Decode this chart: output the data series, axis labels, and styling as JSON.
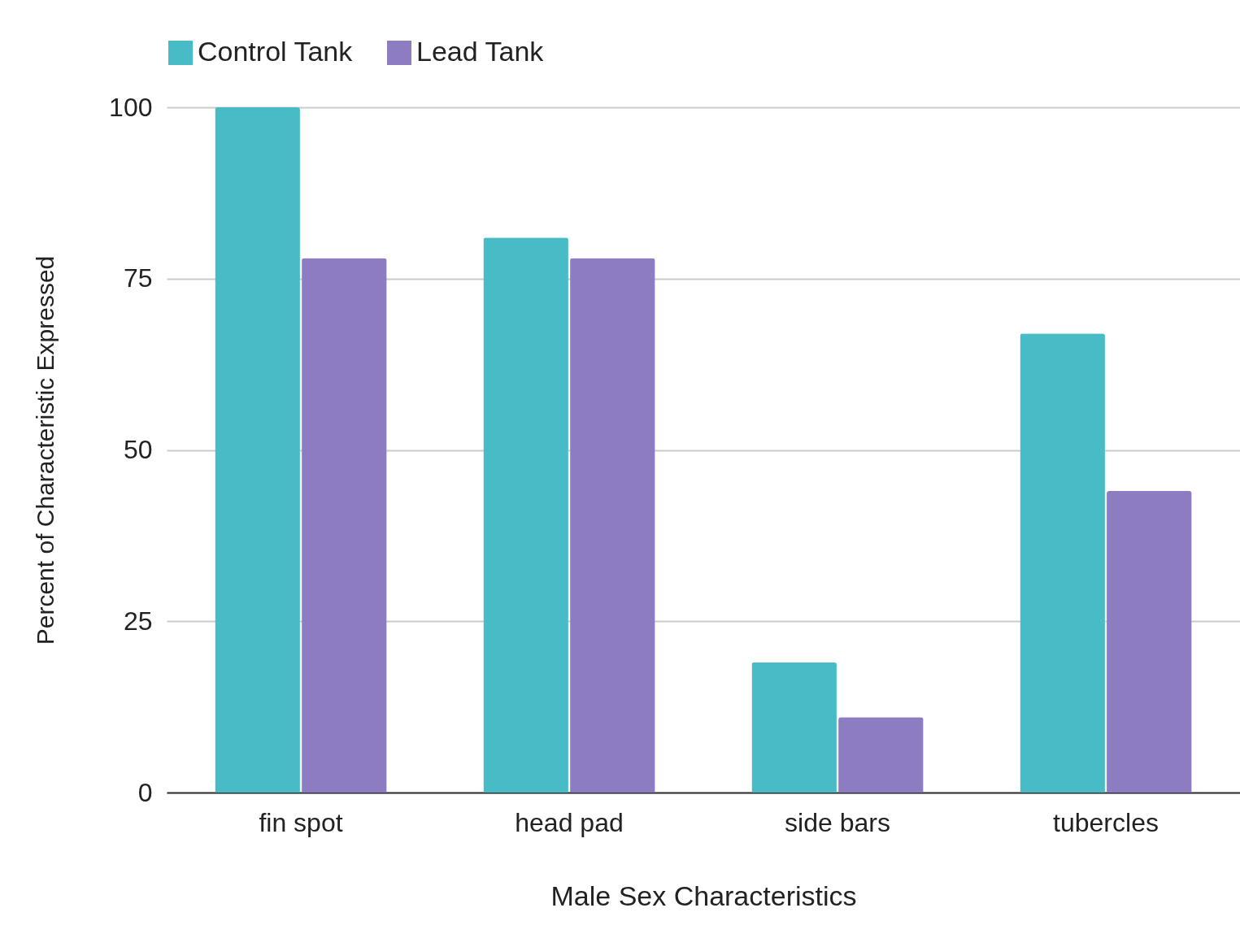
{
  "chart_data": {
    "type": "bar",
    "xlabel": "Male Sex Characteristics",
    "ylabel": "Percent of Characteristic Expressed",
    "categories": [
      "fin spot",
      "head pad",
      "side bars",
      "tubercles"
    ],
    "series": [
      {
        "name": "Control Tank",
        "color": "#47bcc6",
        "values": [
          100,
          81,
          19,
          67
        ]
      },
      {
        "name": "Lead Tank",
        "color": "#8e7cc3",
        "values": [
          78,
          78,
          11,
          44
        ]
      }
    ],
    "ylim": [
      0,
      100
    ],
    "yticks": [
      0,
      25,
      50,
      75,
      100
    ],
    "grid": "y",
    "legend": "top"
  }
}
